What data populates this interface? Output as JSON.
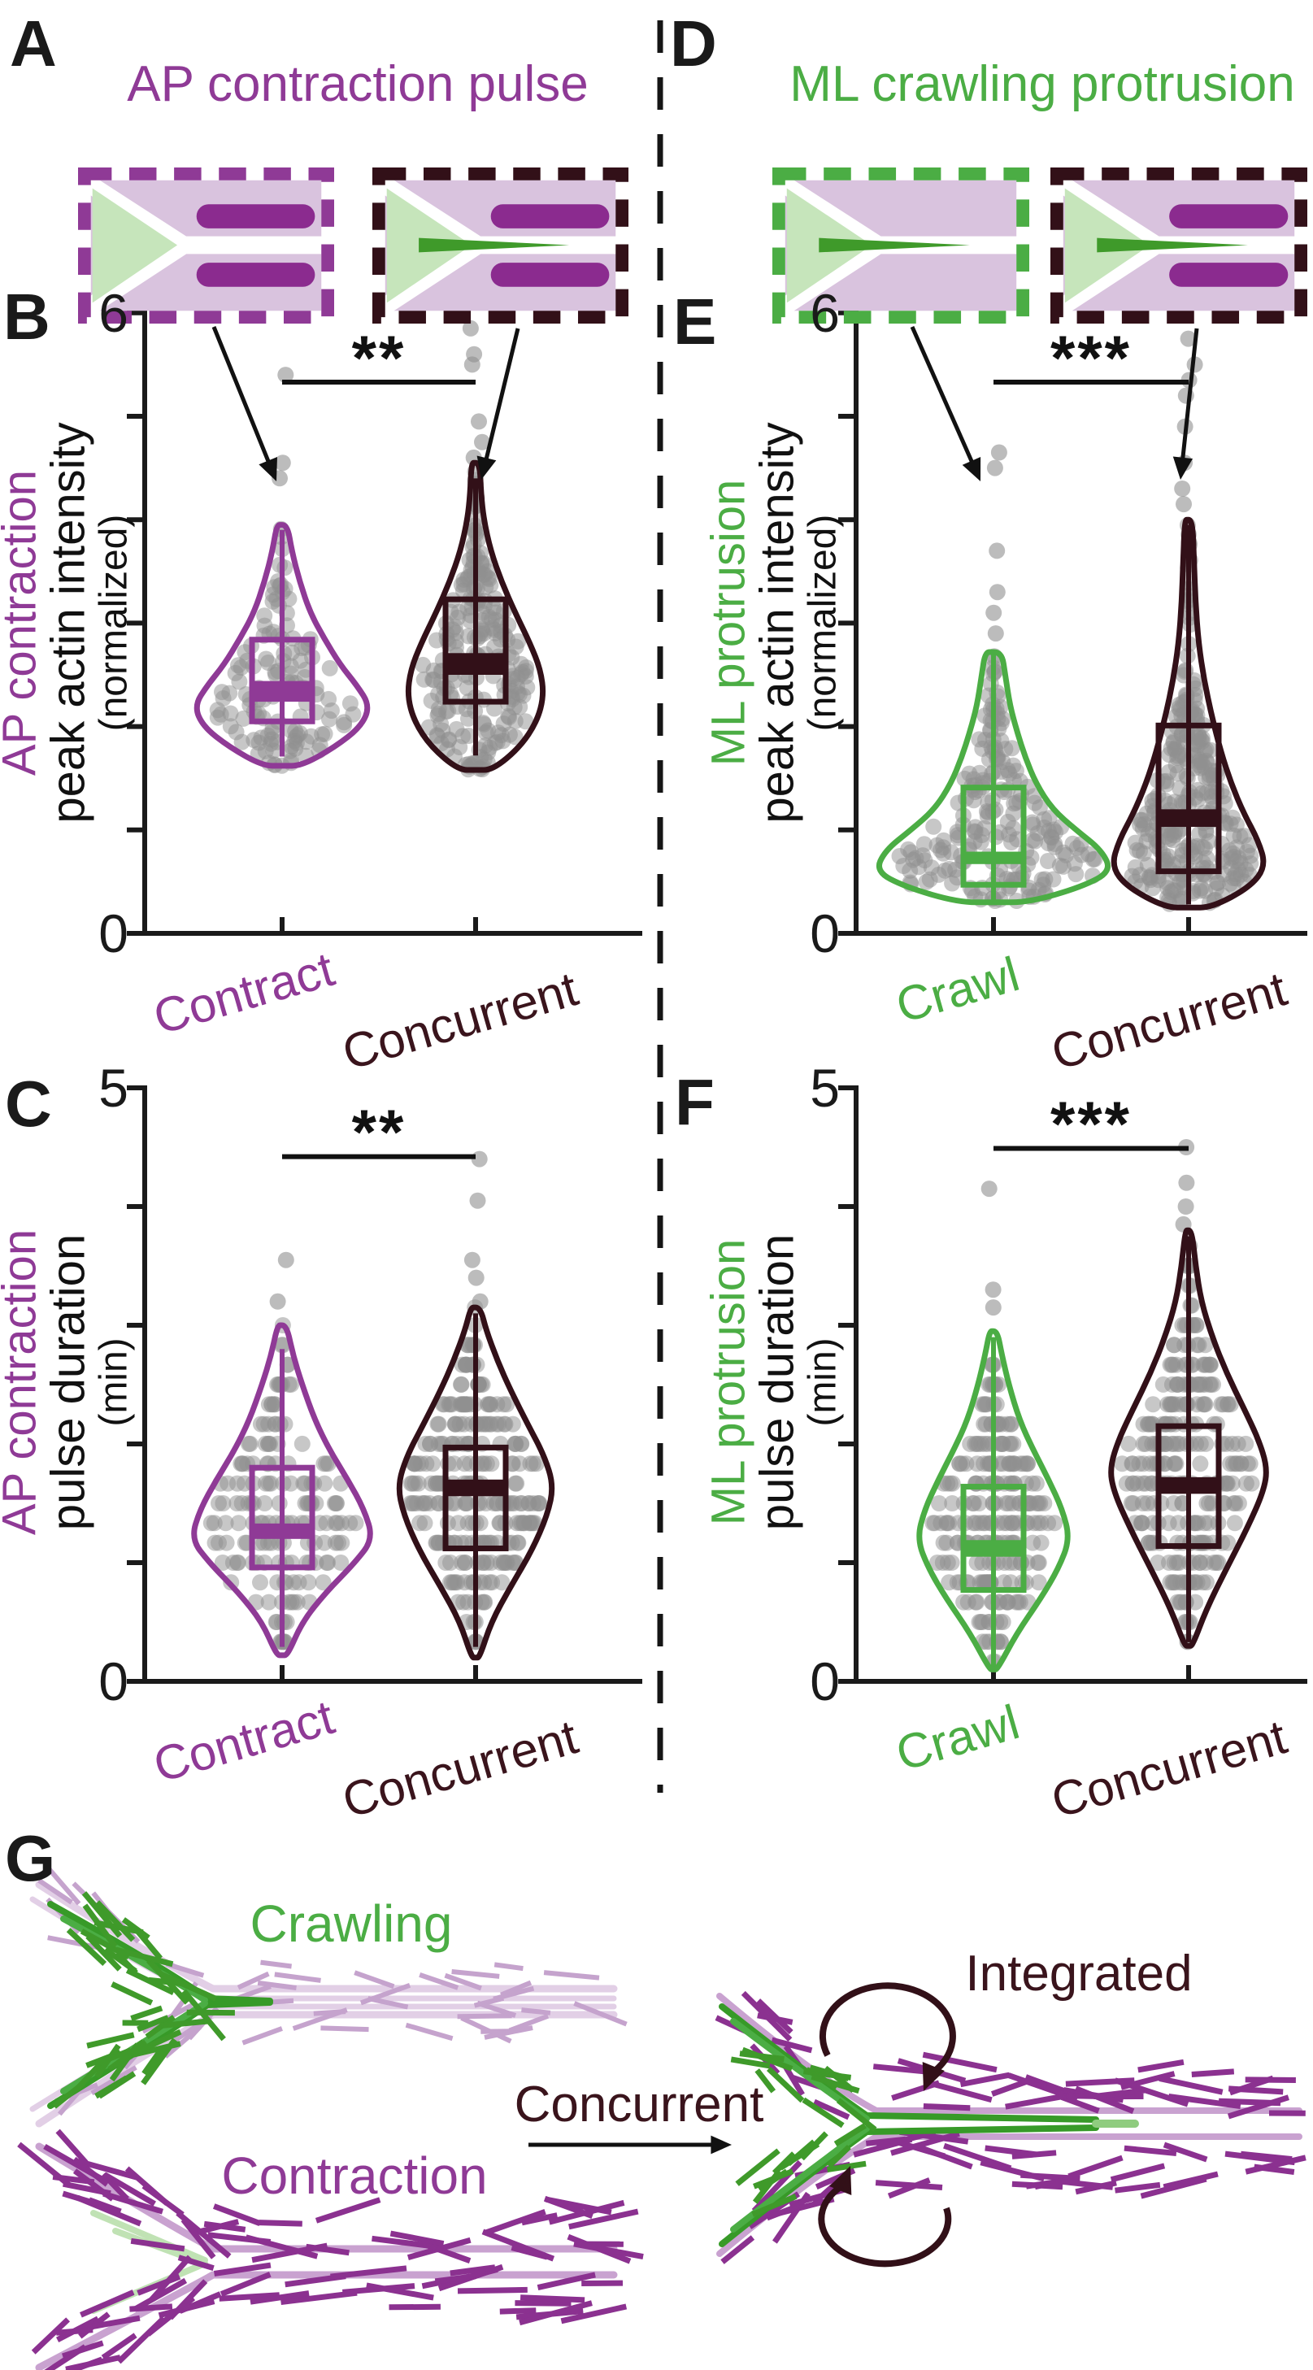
{
  "colors": {
    "purple": "#8f3a96",
    "purple_bar": "#8b2b8f",
    "maroon_text": "#3a141c",
    "maroon_stroke": "#321018",
    "green": "#4bad44",
    "dark_green": "#3f9a2a",
    "light_green": "#c6e5bb",
    "faint_green": "#c0e2b4",
    "lavender": "#d9c3de",
    "light_purple_line": "#c9a2d0",
    "pale_lavender_line": "#e2cfe6",
    "hatch_light_purple": "#c5a3cd",
    "hatch_purple": "#8b3190",
    "dot_gray": "#8f8f8f",
    "axis": "#1a1a1a"
  },
  "panel_a": {
    "letter": "A",
    "title": "AP contraction pulse"
  },
  "panel_d": {
    "letter": "D",
    "title": "ML crawling protrusion"
  },
  "panel_g": {
    "letter": "G",
    "crawling_label": "Crawling",
    "contraction_label": "Contraction",
    "concurrent_label": "Concurrent",
    "integrated_label": "Integrated"
  },
  "schematics": {
    "ap_boxes": [
      {
        "name": "contract-pulse-cell",
        "border": "#8f3a96",
        "bars": true,
        "spike": false
      },
      {
        "name": "concurrent-cell-ap",
        "border": "#321018",
        "bars": true,
        "spike": true
      }
    ],
    "ml_boxes": [
      {
        "name": "crawl-protrusion-cell",
        "border": "#4bad44",
        "bars": false,
        "spike": true
      },
      {
        "name": "concurrent-cell-ml",
        "border": "#321018",
        "bars": true,
        "spike": true
      }
    ]
  },
  "chart_data": [
    {
      "id": "B",
      "type": "violin-box-scatter",
      "panel_letter": "B",
      "ylabel_lines": [
        "AP contraction",
        "peak actin intensity",
        "(normalized)"
      ],
      "ylabel_color": "#8f3a96",
      "ylim": [
        0,
        6
      ],
      "yticks": [
        0,
        1,
        2,
        3,
        4,
        5,
        6
      ],
      "ymax_label": "6",
      "ymin_label": "0",
      "significance": "**",
      "sig_value": 5.33,
      "groups": [
        {
          "label": "Contract",
          "color": "#8f3a96",
          "n_points": 130,
          "seed": 11,
          "quantize": null,
          "box": {
            "q1": 2.05,
            "q3": 2.84,
            "med_lo": 2.24,
            "med_hi": 2.44,
            "whisker_lo": 1.71,
            "whisker_hi": 3.9
          },
          "violin": [
            [
              1.62,
              0.22
            ],
            [
              1.8,
              0.6
            ],
            [
              2.0,
              0.9
            ],
            [
              2.2,
              1.0
            ],
            [
              2.4,
              0.85
            ],
            [
              2.6,
              0.66
            ],
            [
              2.85,
              0.48
            ],
            [
              3.1,
              0.32
            ],
            [
              3.4,
              0.2
            ],
            [
              3.7,
              0.11
            ],
            [
              3.95,
              0.06
            ]
          ],
          "outliers": [
            4.4,
            4.55,
            5.4
          ]
        },
        {
          "label": "Concurrent",
          "color": "#321018",
          "n_points": 225,
          "seed": 22,
          "quantize": null,
          "box": {
            "q1": 2.24,
            "q3": 3.23,
            "med_lo": 2.5,
            "med_hi": 2.71,
            "whisker_lo": 1.72,
            "whisker_hi": 4.4
          },
          "violin": [
            [
              1.58,
              0.25
            ],
            [
              1.8,
              0.65
            ],
            [
              2.05,
              0.9
            ],
            [
              2.3,
              1.0
            ],
            [
              2.55,
              0.95
            ],
            [
              2.8,
              0.8
            ],
            [
              3.1,
              0.58
            ],
            [
              3.4,
              0.38
            ],
            [
              3.7,
              0.22
            ],
            [
              4.0,
              0.12
            ],
            [
              4.25,
              0.08
            ],
            [
              4.55,
              0.06
            ]
          ],
          "outliers": [
            4.6,
            4.75,
            4.95,
            5.5,
            5.6,
            5.85
          ]
        }
      ]
    },
    {
      "id": "E",
      "type": "violin-box-scatter",
      "panel_letter": "E",
      "ylabel_lines": [
        "ML protrusion",
        "peak actin intensity",
        "(normalized)"
      ],
      "ylabel_color": "#4bad44",
      "ylim": [
        0,
        6
      ],
      "yticks": [
        0,
        1,
        2,
        3,
        4,
        5,
        6
      ],
      "ymax_label": "6",
      "ymin_label": "0",
      "significance": "***",
      "sig_value": 5.33,
      "groups": [
        {
          "label": "Crawl",
          "color": "#4bad44",
          "n_points": 210,
          "seed": 33,
          "quantize": null,
          "box": {
            "q1": 0.47,
            "q3": 1.41,
            "med_lo": 0.67,
            "med_hi": 0.79,
            "whisker_lo": 0.32,
            "whisker_hi": 2.7
          },
          "violin": [
            [
              0.3,
              0.3
            ],
            [
              0.45,
              0.75
            ],
            [
              0.6,
              1.0
            ],
            [
              0.8,
              0.92
            ],
            [
              1.0,
              0.7
            ],
            [
              1.2,
              0.5
            ],
            [
              1.45,
              0.36
            ],
            [
              1.7,
              0.27
            ],
            [
              1.95,
              0.2
            ],
            [
              2.2,
              0.14
            ],
            [
              2.5,
              0.1
            ],
            [
              2.72,
              0.07
            ]
          ],
          "outliers": [
            2.9,
            3.1,
            3.3,
            3.7,
            4.5,
            4.65
          ]
        },
        {
          "label": "Concurrent",
          "color": "#321018",
          "n_points": 300,
          "seed": 44,
          "quantize": null,
          "box": {
            "q1": 0.6,
            "q3": 2.01,
            "med_lo": 1.03,
            "med_hi": 1.2,
            "whisker_lo": 0.28,
            "whisker_hi": 3.95
          },
          "violin": [
            [
              0.25,
              0.3
            ],
            [
              0.45,
              0.8
            ],
            [
              0.65,
              1.0
            ],
            [
              0.9,
              0.9
            ],
            [
              1.15,
              0.72
            ],
            [
              1.45,
              0.55
            ],
            [
              1.75,
              0.42
            ],
            [
              2.1,
              0.3
            ],
            [
              2.45,
              0.2
            ],
            [
              2.8,
              0.13
            ],
            [
              3.2,
              0.09
            ],
            [
              3.6,
              0.07
            ],
            [
              4.0,
              0.05
            ]
          ],
          "outliers": [
            4.15,
            4.3,
            4.55,
            4.9,
            5.2,
            5.35,
            5.5,
            5.75
          ]
        }
      ]
    },
    {
      "id": "C",
      "type": "violin-box-scatter",
      "panel_letter": "C",
      "ylabel_lines": [
        "AP contraction",
        "pulse duration",
        "(min)"
      ],
      "ylabel_color": "#8f3a96",
      "ylim": [
        0,
        5
      ],
      "yticks": [
        0,
        1,
        2,
        3,
        4,
        5
      ],
      "ymax_label": "5",
      "ymin_label": "0",
      "significance": "**",
      "sig_value": 4.42,
      "groups": [
        {
          "label": "Contract",
          "color": "#8f3a96",
          "n_points": 160,
          "seed": 55,
          "quantize": 0.1667,
          "box": {
            "q1": 0.96,
            "q3": 1.8,
            "med_lo": 1.2,
            "med_hi": 1.33,
            "whisker_lo": 0.29,
            "whisker_hi": 2.8
          },
          "violin": [
            [
              0.22,
              0.06
            ],
            [
              0.5,
              0.22
            ],
            [
              0.75,
              0.48
            ],
            [
              1.0,
              0.8
            ],
            [
              1.2,
              1.0
            ],
            [
              1.45,
              0.9
            ],
            [
              1.7,
              0.72
            ],
            [
              1.95,
              0.52
            ],
            [
              2.2,
              0.36
            ],
            [
              2.5,
              0.22
            ],
            [
              2.75,
              0.12
            ],
            [
              3.0,
              0.05
            ]
          ],
          "outliers": [
            3.2,
            3.55
          ]
        },
        {
          "label": "Concurrent",
          "color": "#321018",
          "n_points": 260,
          "seed": 66,
          "quantize": 0.1667,
          "box": {
            "q1": 1.12,
            "q3": 1.97,
            "med_lo": 1.56,
            "med_hi": 1.7,
            "whisker_lo": 0.29,
            "whisker_hi": 3.1
          },
          "violin": [
            [
              0.2,
              0.05
            ],
            [
              0.5,
              0.2
            ],
            [
              0.8,
              0.45
            ],
            [
              1.1,
              0.72
            ],
            [
              1.4,
              0.92
            ],
            [
              1.65,
              1.0
            ],
            [
              1.9,
              0.88
            ],
            [
              2.15,
              0.68
            ],
            [
              2.45,
              0.45
            ],
            [
              2.7,
              0.28
            ],
            [
              2.95,
              0.14
            ],
            [
              3.15,
              0.06
            ]
          ],
          "outliers": [
            3.2,
            3.4,
            3.55,
            4.05,
            4.4
          ]
        }
      ]
    },
    {
      "id": "F",
      "type": "violin-box-scatter",
      "panel_letter": "F",
      "ylabel_lines": [
        "ML protrusion",
        "pulse duration",
        "(min)"
      ],
      "ylabel_color": "#4bad44",
      "ylim": [
        0,
        5
      ],
      "yticks": [
        0,
        1,
        2,
        3,
        4,
        5
      ],
      "ymax_label": "5",
      "ymin_label": "0",
      "significance": "***",
      "sig_value": 4.49,
      "groups": [
        {
          "label": "Crawl",
          "color": "#4bad44",
          "n_points": 230,
          "seed": 77,
          "quantize": 0.1667,
          "box": {
            "q1": 0.77,
            "q3": 1.64,
            "med_lo": 1.05,
            "med_hi": 1.19,
            "whisker_lo": 0.12,
            "whisker_hi": 2.9
          },
          "violin": [
            [
              0.1,
              0.05
            ],
            [
              0.4,
              0.3
            ],
            [
              0.7,
              0.62
            ],
            [
              0.95,
              0.85
            ],
            [
              1.2,
              1.0
            ],
            [
              1.45,
              0.9
            ],
            [
              1.7,
              0.72
            ],
            [
              1.95,
              0.52
            ],
            [
              2.2,
              0.34
            ],
            [
              2.5,
              0.2
            ],
            [
              2.75,
              0.11
            ],
            [
              2.95,
              0.05
            ]
          ],
          "outliers": [
            3.15,
            3.3,
            4.15
          ]
        },
        {
          "label": "Concurrent",
          "color": "#321018",
          "n_points": 260,
          "seed": 88,
          "quantize": 0.1667,
          "box": {
            "q1": 1.14,
            "q3": 2.15,
            "med_lo": 1.58,
            "med_hi": 1.72,
            "whisker_lo": 0.33,
            "whisker_hi": 3.75
          },
          "violin": [
            [
              0.3,
              0.05
            ],
            [
              0.6,
              0.22
            ],
            [
              0.95,
              0.48
            ],
            [
              1.3,
              0.75
            ],
            [
              1.6,
              0.95
            ],
            [
              1.8,
              1.0
            ],
            [
              2.05,
              0.88
            ],
            [
              2.3,
              0.7
            ],
            [
              2.6,
              0.48
            ],
            [
              2.9,
              0.3
            ],
            [
              3.2,
              0.16
            ],
            [
              3.5,
              0.09
            ],
            [
              3.8,
              0.04
            ]
          ],
          "outliers": [
            3.85,
            4.0,
            4.2,
            4.5
          ]
        }
      ]
    }
  ]
}
